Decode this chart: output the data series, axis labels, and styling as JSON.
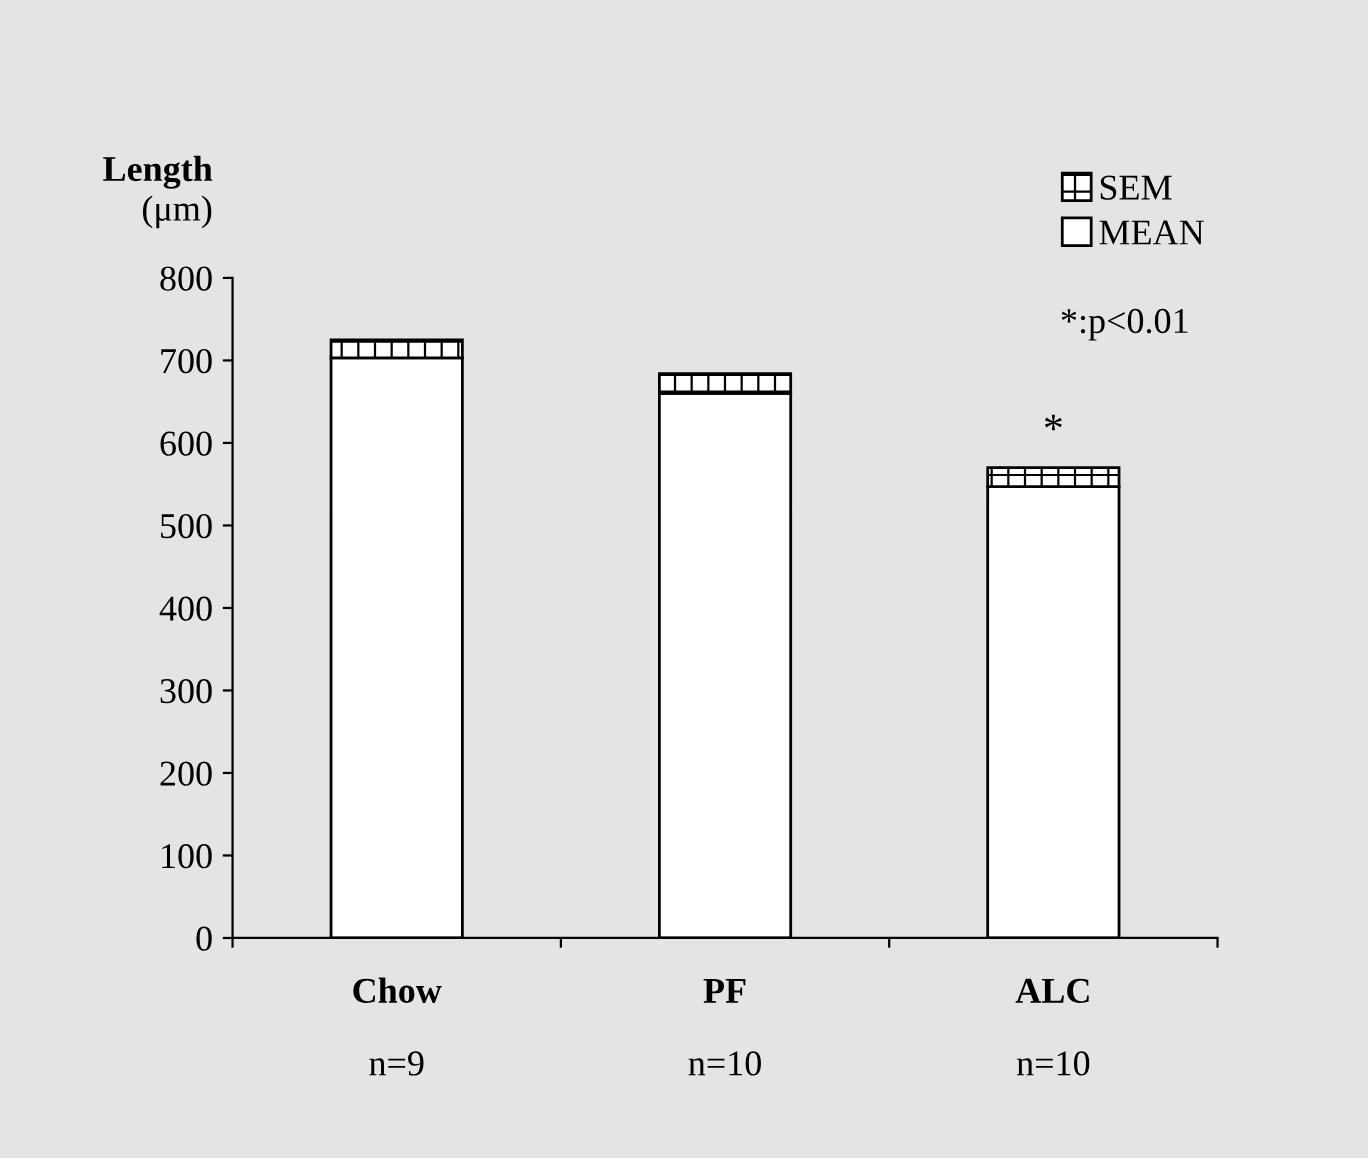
{
  "chart_data": {
    "type": "bar",
    "stacked": true,
    "ylabel": "Length\n(μm)",
    "categories": [
      "Chow",
      "PF",
      "ALC"
    ],
    "series": [
      {
        "name": "MEAN",
        "color": "#ffffff",
        "values": [
          703,
          660,
          547
        ]
      },
      {
        "name": "SEM",
        "color": "#000000",
        "values": [
          22,
          24,
          23
        ]
      }
    ],
    "ylim": [
      0,
      800
    ],
    "yticks": [
      0,
      100,
      200,
      300,
      400,
      500,
      600,
      700,
      800
    ],
    "legend": "top right",
    "grid": false,
    "annotations": [
      "n=9",
      "n=10",
      "n=10",
      "*",
      "*:p<0.01"
    ]
  }
}
